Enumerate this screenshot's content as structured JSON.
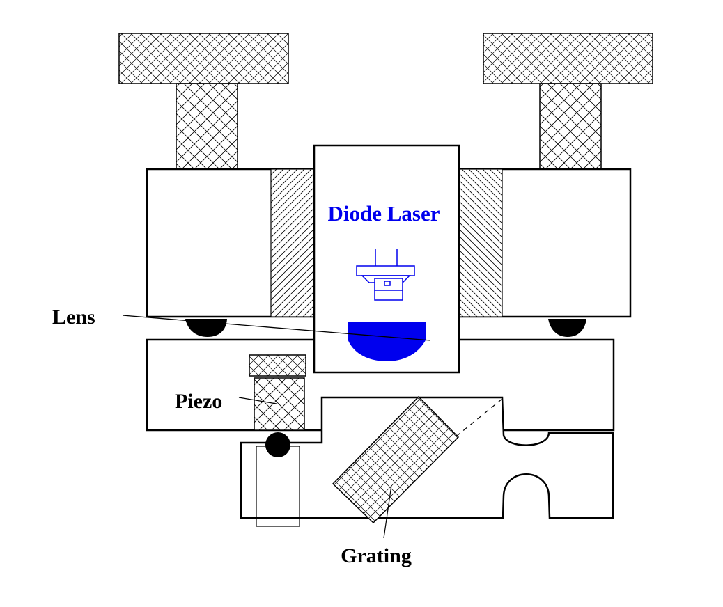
{
  "labels": {
    "diode_laser": "Diode Laser",
    "lens": "Lens",
    "piezo": "Piezo",
    "grating": "Grating"
  },
  "colors": {
    "outline": "#000000",
    "laser": "#0000ee",
    "background": "#ffffff"
  }
}
